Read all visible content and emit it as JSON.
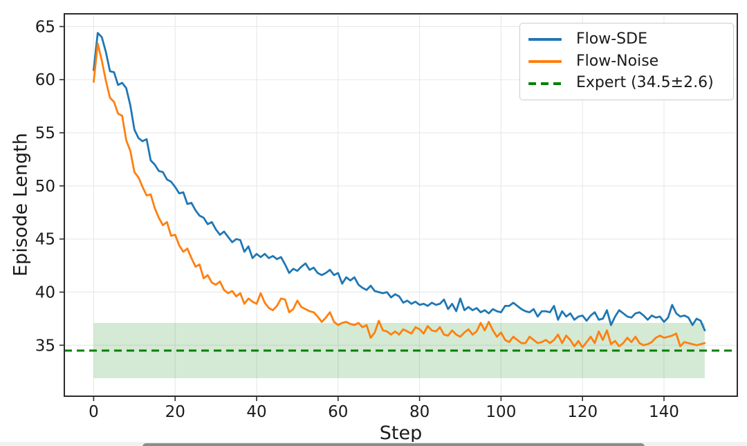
{
  "figure": {
    "background": "#ffffff",
    "bottom_strip_color": "#f2f2f2",
    "bottom_bar_color": "#8c8c8c"
  },
  "chart_data": {
    "type": "line",
    "title": "",
    "xlabel": "Step",
    "ylabel": "Episode Length",
    "xlim": [
      -7.2,
      158.0
    ],
    "ylim": [
      30.2,
      66.2
    ],
    "x_ticks": [
      0,
      20,
      40,
      60,
      80,
      100,
      120,
      140
    ],
    "y_ticks": [
      35,
      40,
      45,
      50,
      55,
      60,
      65
    ],
    "grid": true,
    "grid_color": "#e8e8e8",
    "axis_color": "#2b2b2b",
    "tick_label_color": "#1a1a1a",
    "legend_position": "upper right",
    "x": {
      "start": 0,
      "step": 1
    },
    "series": [
      {
        "name": "Flow-SDE",
        "color": "#1f77b4",
        "line_style": "solid",
        "values": [
          60.9,
          64.4,
          64.0,
          62.6,
          60.8,
          60.7,
          59.5,
          59.7,
          59.2,
          57.6,
          55.3,
          54.5,
          54.2,
          54.4,
          52.4,
          52.0,
          51.4,
          51.3,
          50.6,
          50.4,
          49.9,
          49.3,
          49.4,
          48.3,
          48.4,
          47.7,
          47.2,
          47.0,
          46.4,
          46.6,
          45.9,
          45.4,
          45.7,
          45.2,
          44.7,
          45.0,
          44.9,
          43.8,
          44.3,
          43.2,
          43.6,
          43.3,
          43.6,
          43.2,
          43.4,
          43.1,
          43.3,
          42.6,
          41.8,
          42.2,
          42.0,
          42.4,
          42.7,
          42.1,
          42.3,
          41.8,
          41.6,
          41.8,
          42.1,
          41.6,
          41.8,
          40.8,
          41.4,
          41.1,
          41.4,
          40.7,
          40.4,
          40.2,
          40.6,
          40.1,
          40.0,
          39.9,
          40.0,
          39.5,
          39.8,
          39.6,
          39.0,
          39.2,
          38.9,
          39.1,
          38.8,
          38.9,
          38.7,
          39.0,
          38.8,
          38.9,
          39.3,
          38.4,
          38.9,
          38.2,
          39.4,
          38.3,
          38.6,
          38.3,
          38.5,
          38.1,
          38.3,
          38.0,
          38.4,
          38.2,
          38.1,
          38.7,
          38.7,
          39.0,
          38.7,
          38.4,
          38.2,
          38.1,
          38.4,
          37.7,
          38.2,
          38.2,
          38.1,
          38.7,
          37.4,
          38.2,
          37.7,
          38.0,
          37.4,
          37.7,
          37.8,
          37.3,
          37.8,
          38.1,
          37.4,
          37.5,
          38.3,
          36.9,
          37.7,
          38.3,
          38.0,
          37.7,
          37.6,
          38.0,
          38.1,
          37.8,
          37.4,
          37.8,
          37.6,
          37.7,
          37.2,
          37.6,
          38.8,
          38.0,
          37.7,
          37.8,
          37.6,
          36.9,
          37.5,
          37.3,
          36.4
        ]
      },
      {
        "name": "Flow-Noise",
        "color": "#ff7f0e",
        "line_style": "solid",
        "values": [
          59.8,
          63.4,
          61.8,
          59.9,
          58.3,
          57.9,
          56.8,
          56.6,
          54.3,
          53.3,
          51.3,
          50.8,
          49.9,
          49.1,
          49.2,
          47.9,
          47.0,
          46.3,
          46.6,
          45.3,
          45.4,
          44.4,
          43.8,
          44.1,
          43.2,
          42.4,
          42.6,
          41.3,
          41.6,
          40.9,
          40.7,
          41.0,
          40.2,
          39.9,
          40.1,
          39.6,
          39.9,
          38.9,
          39.4,
          39.1,
          38.9,
          39.9,
          39.0,
          38.5,
          38.3,
          38.7,
          39.4,
          39.3,
          38.1,
          38.4,
          39.2,
          38.6,
          38.4,
          38.2,
          38.1,
          37.7,
          37.2,
          37.6,
          38.1,
          37.2,
          36.9,
          37.1,
          37.2,
          37.0,
          36.9,
          37.1,
          36.7,
          36.9,
          35.7,
          36.2,
          37.3,
          36.4,
          36.3,
          36.0,
          36.3,
          36.0,
          36.5,
          36.3,
          36.1,
          36.7,
          36.5,
          36.1,
          36.8,
          36.4,
          36.3,
          36.7,
          36.0,
          35.9,
          36.4,
          36.0,
          35.8,
          36.2,
          36.5,
          36.0,
          36.3,
          37.1,
          36.4,
          37.2,
          36.4,
          35.8,
          36.2,
          35.5,
          35.3,
          35.8,
          35.5,
          35.2,
          35.2,
          35.8,
          35.5,
          35.2,
          35.3,
          35.5,
          35.2,
          35.5,
          36.0,
          35.2,
          35.9,
          35.5,
          34.9,
          35.4,
          34.8,
          35.3,
          35.8,
          35.2,
          36.3,
          35.5,
          36.4,
          35.1,
          35.4,
          34.9,
          35.2,
          35.7,
          35.3,
          35.8,
          35.2,
          35.0,
          35.1,
          35.3,
          35.7,
          35.9,
          35.7,
          35.8,
          35.9,
          36.1,
          34.9,
          35.3,
          35.2,
          35.1,
          35.0,
          35.1,
          35.2
        ]
      }
    ],
    "expert": {
      "label": "Expert (34.5±2.6)",
      "mean": 34.5,
      "std": 2.6,
      "color": "#008000",
      "line_style": "dashed",
      "band": {
        "x_from": 0,
        "x_to": 150,
        "y_from": 31.9,
        "y_to": 37.1,
        "opacity": 0.17
      }
    }
  }
}
